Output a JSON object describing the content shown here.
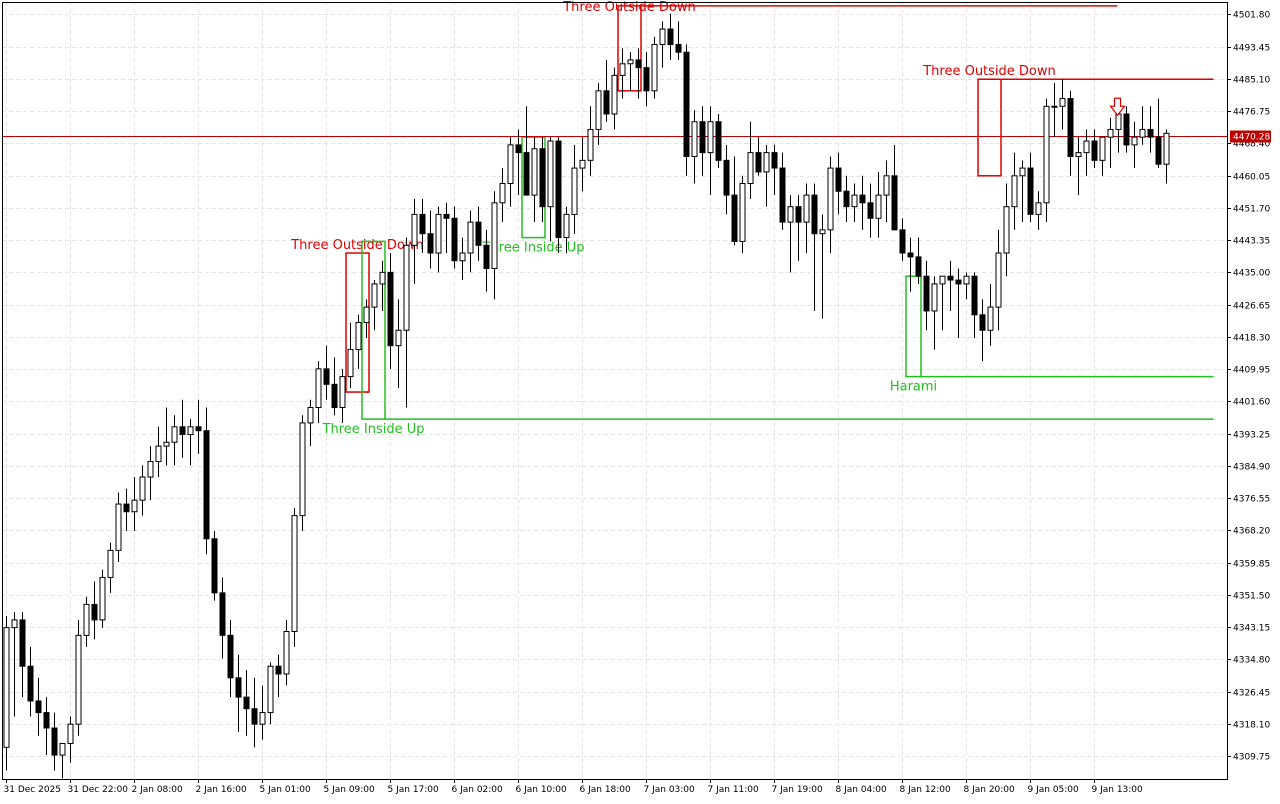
{
  "chart_data": {
    "type": "candlestick",
    "colors": {
      "background": "#ffffff",
      "grid": "#e4e4e4",
      "bull_body": "#ffffff",
      "bear_body": "#000000",
      "candle_outline": "#000000",
      "current_price_line": "#c00000",
      "bearish_pattern": "#e00000",
      "bullish_pattern": "#20c020"
    },
    "grid": true,
    "y_axis": {
      "position": "right",
      "range": [
        4303.8,
        4505.0
      ],
      "ticks": [
        "4501.80",
        "4493.45",
        "4485.10",
        "4476.75",
        "4468.40",
        "4460.05",
        "4451.70",
        "4443.35",
        "4435.00",
        "4426.65",
        "4418.30",
        "4409.95",
        "4401.60",
        "4393.25",
        "4384.90",
        "4376.55",
        "4368.20",
        "4359.85",
        "4351.50",
        "4343.15",
        "4334.80",
        "4326.45",
        "4318.10",
        "4309.75"
      ]
    },
    "x_axis": {
      "bar_count": 151,
      "ticks": [
        {
          "bar": 0,
          "label": "31 Dec 2025"
        },
        {
          "bar": 8,
          "label": "31 Dec 22:00"
        },
        {
          "bar": 16,
          "label": "2 Jan 08:00"
        },
        {
          "bar": 24,
          "label": "2 Jan 16:00"
        },
        {
          "bar": 32,
          "label": "5 Jan 01:00"
        },
        {
          "bar": 40,
          "label": "5 Jan 09:00"
        },
        {
          "bar": 48,
          "label": "5 Jan 17:00"
        },
        {
          "bar": 56,
          "label": "6 Jan 02:00"
        },
        {
          "bar": 64,
          "label": "6 Jan 10:00"
        },
        {
          "bar": 72,
          "label": "6 Jan 18:00"
        },
        {
          "bar": 80,
          "label": "7 Jan 03:00"
        },
        {
          "bar": 88,
          "label": "7 Jan 11:00"
        },
        {
          "bar": 96,
          "label": "7 Jan 19:00"
        },
        {
          "bar": 104,
          "label": "8 Jan 04:00"
        },
        {
          "bar": 112,
          "label": "8 Jan 12:00"
        },
        {
          "bar": 120,
          "label": "8 Jan 20:00"
        },
        {
          "bar": 128,
          "label": "9 Jan 05:00"
        },
        {
          "bar": 136,
          "label": "9 Jan 13:00"
        }
      ]
    },
    "current_price": 4470.28,
    "current_price_label": "4470.28",
    "candles": [
      [
        4312,
        4346,
        4306,
        4343
      ],
      [
        4343,
        4347,
        4320,
        4345
      ],
      [
        4345,
        4347,
        4325,
        4333
      ],
      [
        4333,
        4338,
        4320,
        4324
      ],
      [
        4324,
        4330,
        4315,
        4321
      ],
      [
        4321,
        4325,
        4310,
        4317
      ],
      [
        4317,
        4321,
        4306,
        4310
      ],
      [
        4310,
        4313,
        4304,
        4313
      ],
      [
        4313,
        4320,
        4308,
        4318
      ],
      [
        4318,
        4345,
        4315,
        4341
      ],
      [
        4341,
        4351,
        4338,
        4349
      ],
      [
        4349,
        4355,
        4340,
        4345
      ],
      [
        4345,
        4358,
        4343,
        4356
      ],
      [
        4356,
        4365,
        4352,
        4363
      ],
      [
        4363,
        4378,
        4360,
        4375
      ],
      [
        4375,
        4379,
        4368,
        4373
      ],
      [
        4373,
        4382,
        4368,
        4376
      ],
      [
        4376,
        4385,
        4372,
        4382
      ],
      [
        4382,
        4390,
        4376,
        4386
      ],
      [
        4386,
        4395,
        4382,
        4390
      ],
      [
        4390,
        4400,
        4385,
        4391
      ],
      [
        4391,
        4398,
        4385,
        4395
      ],
      [
        4395,
        4402,
        4387,
        4393
      ],
      [
        4393,
        4397,
        4385,
        4395
      ],
      [
        4395,
        4402,
        4388,
        4394
      ],
      [
        4394,
        4400,
        4362,
        4366
      ],
      [
        4366,
        4368,
        4350,
        4352
      ],
      [
        4352,
        4356,
        4335,
        4341
      ],
      [
        4341,
        4345,
        4325,
        4330
      ],
      [
        4330,
        4336,
        4316,
        4325
      ],
      [
        4325,
        4332,
        4315,
        4322
      ],
      [
        4322,
        4330,
        4312,
        4318
      ],
      [
        4318,
        4328,
        4314,
        4321
      ],
      [
        4321,
        4334,
        4318,
        4333
      ],
      [
        4333,
        4336,
        4325,
        4331
      ],
      [
        4331,
        4345,
        4328,
        4342
      ],
      [
        4342,
        4374,
        4338,
        4372
      ],
      [
        4372,
        4398,
        4368,
        4396
      ],
      [
        4396,
        4402,
        4390,
        4400
      ],
      [
        4400,
        4412,
        4396,
        4410
      ],
      [
        4410,
        4416,
        4402,
        4406
      ],
      [
        4406,
        4413,
        4398,
        4400
      ],
      [
        4400,
        4410,
        4396,
        4408
      ],
      [
        4408,
        4422,
        4405,
        4415
      ],
      [
        4415,
        4424,
        4410,
        4422
      ],
      [
        4422,
        4428,
        4418,
        4426
      ],
      [
        4426,
        4433,
        4420,
        4432
      ],
      [
        4432,
        4438,
        4425,
        4435
      ],
      [
        4435,
        4440,
        4410,
        4416
      ],
      [
        4416,
        4428,
        4405,
        4420
      ],
      [
        4420,
        4444,
        4400,
        4442
      ],
      [
        4442,
        4454,
        4432,
        4450
      ],
      [
        4450,
        4454,
        4440,
        4445
      ],
      [
        4445,
        4451,
        4436,
        4440
      ],
      [
        4440,
        4452,
        4435,
        4450
      ],
      [
        4450,
        4453,
        4440,
        4449
      ],
      [
        4449,
        4452,
        4436,
        4438
      ],
      [
        4438,
        4444,
        4433,
        4440
      ],
      [
        4440,
        4451,
        4435,
        4448
      ],
      [
        4448,
        4452,
        4438,
        4442
      ],
      [
        4442,
        4446,
        4430,
        4436
      ],
      [
        4436,
        4456,
        4428,
        4453
      ],
      [
        4453,
        4462,
        4448,
        4458
      ],
      [
        4458,
        4470,
        4452,
        4468
      ],
      [
        4468,
        4472,
        4455,
        4466
      ],
      [
        4466,
        4478,
        4455,
        4455
      ],
      [
        4455,
        4470,
        4448,
        4467
      ],
      [
        4467,
        4470,
        4448,
        4452
      ],
      [
        4452,
        4470,
        4443,
        4469
      ],
      [
        4469,
        4470,
        4440,
        4444
      ],
      [
        4444,
        4452,
        4440,
        4450
      ],
      [
        4450,
        4468,
        4445,
        4462
      ],
      [
        4462,
        4470,
        4456,
        4464
      ],
      [
        4464,
        4478,
        4460,
        4472
      ],
      [
        4472,
        4484,
        4468,
        4482
      ],
      [
        4482,
        4490,
        4474,
        4476
      ],
      [
        4476,
        4488,
        4472,
        4486
      ],
      [
        4486,
        4493,
        4480,
        4489
      ],
      [
        4489,
        4492,
        4482,
        4490
      ],
      [
        4490,
        4493,
        4480,
        4488
      ],
      [
        4488,
        4492,
        4478,
        4482
      ],
      [
        4482,
        4496,
        4480,
        4494
      ],
      [
        4494,
        4500,
        4488,
        4498
      ],
      [
        4498,
        4502,
        4490,
        4494
      ],
      [
        4494,
        4500,
        4490,
        4492
      ],
      [
        4492,
        4494,
        4460,
        4465
      ],
      [
        4465,
        4477,
        4458,
        4474
      ],
      [
        4474,
        4478,
        4460,
        4466
      ],
      [
        4466,
        4478,
        4455,
        4474
      ],
      [
        4474,
        4476,
        4462,
        4464
      ],
      [
        4464,
        4468,
        4450,
        4455
      ],
      [
        4455,
        4465,
        4442,
        4443
      ],
      [
        4443,
        4460,
        4440,
        4458
      ],
      [
        4458,
        4474,
        4454,
        4466
      ],
      [
        4466,
        4470,
        4460,
        4461
      ],
      [
        4461,
        4468,
        4452,
        4466
      ],
      [
        4466,
        4468,
        4455,
        4462
      ],
      [
        4462,
        4466,
        4446,
        4448
      ],
      [
        4448,
        4455,
        4435,
        4452
      ],
      [
        4452,
        4455,
        4438,
        4448
      ],
      [
        4448,
        4458,
        4440,
        4455
      ],
      [
        4455,
        4458,
        4425,
        4445
      ],
      [
        4445,
        4450,
        4423,
        4446
      ],
      [
        4446,
        4465,
        4440,
        4462
      ],
      [
        4462,
        4466,
        4450,
        4456
      ],
      [
        4456,
        4460,
        4448,
        4452
      ],
      [
        4452,
        4458,
        4448,
        4455
      ],
      [
        4455,
        4460,
        4446,
        4453
      ],
      [
        4453,
        4458,
        4444,
        4449
      ],
      [
        4449,
        4461,
        4444,
        4455
      ],
      [
        4455,
        4464,
        4448,
        4460
      ],
      [
        4460,
        4468,
        4448,
        4446
      ],
      [
        4446,
        4449,
        4438,
        4440
      ],
      [
        4440,
        4444,
        4430,
        4439
      ],
      [
        4439,
        4444,
        4432,
        4434
      ],
      [
        4434,
        4438,
        4420,
        4425
      ],
      [
        4425,
        4434,
        4415,
        4432
      ],
      [
        4432,
        4434,
        4420,
        4434
      ],
      [
        4434,
        4438,
        4425,
        4433
      ],
      [
        4433,
        4436,
        4418,
        4432
      ],
      [
        4432,
        4435,
        4428,
        4434
      ],
      [
        4434,
        4435,
        4418,
        4424
      ],
      [
        4424,
        4428,
        4412,
        4420
      ],
      [
        4420,
        4432,
        4416,
        4426
      ],
      [
        4426,
        4446,
        4420,
        4440
      ],
      [
        4440,
        4458,
        4434,
        4452
      ],
      [
        4452,
        4466,
        4446,
        4460
      ],
      [
        4460,
        4464,
        4448,
        4462
      ],
      [
        4462,
        4466,
        4448,
        4450
      ],
      [
        4450,
        4456,
        4446,
        4453
      ],
      [
        4453,
        4480,
        4448,
        4478
      ],
      [
        4478,
        4484,
        4470,
        4478
      ],
      [
        4478,
        4485,
        4472,
        4480
      ],
      [
        4480,
        4482,
        4460,
        4465
      ],
      [
        4465,
        4470,
        4455,
        4466
      ],
      [
        4466,
        4472,
        4460,
        4469
      ],
      [
        4469,
        4472,
        4462,
        4464
      ],
      [
        4464,
        4470,
        4460,
        4470
      ],
      [
        4470,
        4475,
        4462,
        4472
      ],
      [
        4472,
        4478,
        4466,
        4476
      ],
      [
        4476,
        4478,
        4466,
        4468
      ],
      [
        4468,
        4474,
        4462,
        4470
      ],
      [
        4470,
        4478,
        4468,
        4472
      ],
      [
        4472,
        4478,
        4466,
        4470
      ],
      [
        4470,
        4480,
        4462,
        4463
      ],
      [
        4463,
        4472,
        4458,
        4471
      ]
    ],
    "patterns": [
      {
        "label": "Three Outside Down",
        "kind": "bearish",
        "box_bars": [
          43,
          45
        ],
        "box_price": [
          4404,
          4440
        ],
        "line_price": 4404,
        "line_end_bar": 45
      },
      {
        "label": "Three Inside Up",
        "kind": "bullish",
        "box_bars": [
          45,
          47
        ],
        "box_price": [
          4397,
          4443
        ],
        "line_price": 4397,
        "line_end_bar": 151
      },
      {
        "label": "Three Inside Up",
        "kind": "bullish",
        "box_bars": [
          65,
          67
        ],
        "box_price": [
          4444,
          4470
        ],
        "line_price": 4444,
        "line_end_bar": 67
      },
      {
        "label": "Three Outside Down",
        "kind": "bearish",
        "box_bars": [
          77,
          79
        ],
        "box_price": [
          4482,
          4504
        ],
        "line_price": 4504,
        "line_end_bar": 139
      },
      {
        "label": "Harami",
        "kind": "bullish",
        "box_bars": [
          113,
          114
        ],
        "box_price": [
          4408,
          4434
        ],
        "line_price": 4408,
        "line_end_bar": 151
      },
      {
        "label": "Three Outside Down",
        "kind": "bearish",
        "box_bars": [
          122,
          124
        ],
        "box_price": [
          4460,
          4485
        ],
        "line_price": 4485,
        "line_end_bar": 151
      }
    ],
    "signal_arrow": {
      "direction": "down",
      "bar": 139,
      "price": 4478,
      "color": "#e00000"
    }
  }
}
